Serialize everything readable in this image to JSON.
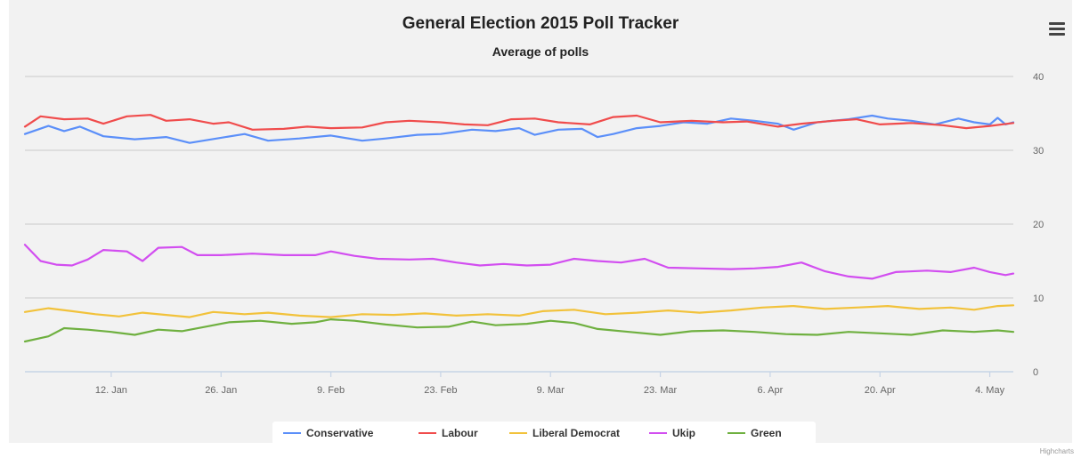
{
  "chart_data": {
    "type": "line",
    "title": "General Election 2015 Poll Tracker",
    "subtitle": "Average of polls",
    "xlabel": "",
    "ylabel": "",
    "x_range": [
      "2015-01-01",
      "2015-05-07"
    ],
    "ylim": [
      0,
      40
    ],
    "yticks": [
      "0",
      "10",
      "20",
      "30",
      "40"
    ],
    "xticks": [
      {
        "label": "12. Jan",
        "date": "2015-01-12"
      },
      {
        "label": "26. Jan",
        "date": "2015-01-26"
      },
      {
        "label": "9. Feb",
        "date": "2015-02-09"
      },
      {
        "label": "23. Feb",
        "date": "2015-02-23"
      },
      {
        "label": "9. Mar",
        "date": "2015-03-09"
      },
      {
        "label": "23. Mar",
        "date": "2015-03-23"
      },
      {
        "label": "6. Apr",
        "date": "2015-04-06"
      },
      {
        "label": "20. Apr",
        "date": "2015-04-20"
      },
      {
        "label": "4. May",
        "date": "2015-05-04"
      }
    ],
    "grid": true,
    "legend_position": "bottom",
    "y_axis_side": "right",
    "series": [
      {
        "name": "Conservative",
        "color": "#5b8ff9",
        "points": [
          [
            "2015-01-01",
            32.2
          ],
          [
            "2015-01-04",
            33.3
          ],
          [
            "2015-01-06",
            32.6
          ],
          [
            "2015-01-08",
            33.2
          ],
          [
            "2015-01-11",
            31.9
          ],
          [
            "2015-01-15",
            31.5
          ],
          [
            "2015-01-19",
            31.8
          ],
          [
            "2015-01-22",
            31.0
          ],
          [
            "2015-01-26",
            31.7
          ],
          [
            "2015-01-29",
            32.2
          ],
          [
            "2015-02-01",
            31.3
          ],
          [
            "2015-02-05",
            31.6
          ],
          [
            "2015-02-09",
            32.0
          ],
          [
            "2015-02-13",
            31.3
          ],
          [
            "2015-02-16",
            31.6
          ],
          [
            "2015-02-20",
            32.1
          ],
          [
            "2015-02-23",
            32.2
          ],
          [
            "2015-02-27",
            32.8
          ],
          [
            "2015-03-02",
            32.6
          ],
          [
            "2015-03-05",
            33.0
          ],
          [
            "2015-03-07",
            32.1
          ],
          [
            "2015-03-10",
            32.8
          ],
          [
            "2015-03-13",
            32.9
          ],
          [
            "2015-03-15",
            31.8
          ],
          [
            "2015-03-17",
            32.2
          ],
          [
            "2015-03-20",
            33.0
          ],
          [
            "2015-03-23",
            33.3
          ],
          [
            "2015-03-26",
            33.8
          ],
          [
            "2015-03-29",
            33.6
          ],
          [
            "2015-04-01",
            34.3
          ],
          [
            "2015-04-04",
            34.0
          ],
          [
            "2015-04-07",
            33.6
          ],
          [
            "2015-04-09",
            32.8
          ],
          [
            "2015-04-12",
            33.8
          ],
          [
            "2015-04-16",
            34.2
          ],
          [
            "2015-04-19",
            34.7
          ],
          [
            "2015-04-21",
            34.3
          ],
          [
            "2015-04-24",
            34.0
          ],
          [
            "2015-04-27",
            33.5
          ],
          [
            "2015-04-30",
            34.3
          ],
          [
            "2015-05-02",
            33.8
          ],
          [
            "2015-05-04",
            33.5
          ],
          [
            "2015-05-05",
            34.4
          ],
          [
            "2015-05-06",
            33.5
          ],
          [
            "2015-05-07",
            33.8
          ]
        ]
      },
      {
        "name": "Labour",
        "color": "#f04c4c",
        "points": [
          [
            "2015-01-01",
            33.2
          ],
          [
            "2015-01-03",
            34.6
          ],
          [
            "2015-01-06",
            34.2
          ],
          [
            "2015-01-09",
            34.3
          ],
          [
            "2015-01-11",
            33.6
          ],
          [
            "2015-01-14",
            34.6
          ],
          [
            "2015-01-17",
            34.8
          ],
          [
            "2015-01-19",
            34.0
          ],
          [
            "2015-01-22",
            34.2
          ],
          [
            "2015-01-25",
            33.6
          ],
          [
            "2015-01-27",
            33.8
          ],
          [
            "2015-01-30",
            32.8
          ],
          [
            "2015-02-03",
            32.9
          ],
          [
            "2015-02-06",
            33.2
          ],
          [
            "2015-02-09",
            33.0
          ],
          [
            "2015-02-13",
            33.1
          ],
          [
            "2015-02-16",
            33.8
          ],
          [
            "2015-02-19",
            34.0
          ],
          [
            "2015-02-23",
            33.8
          ],
          [
            "2015-02-26",
            33.5
          ],
          [
            "2015-03-01",
            33.4
          ],
          [
            "2015-03-04",
            34.2
          ],
          [
            "2015-03-07",
            34.3
          ],
          [
            "2015-03-10",
            33.8
          ],
          [
            "2015-03-14",
            33.5
          ],
          [
            "2015-03-17",
            34.5
          ],
          [
            "2015-03-20",
            34.7
          ],
          [
            "2015-03-23",
            33.8
          ],
          [
            "2015-03-27",
            34.0
          ],
          [
            "2015-03-31",
            33.8
          ],
          [
            "2015-04-03",
            33.9
          ],
          [
            "2015-04-07",
            33.2
          ],
          [
            "2015-04-10",
            33.6
          ],
          [
            "2015-04-14",
            34.0
          ],
          [
            "2015-04-17",
            34.2
          ],
          [
            "2015-04-20",
            33.5
          ],
          [
            "2015-04-24",
            33.7
          ],
          [
            "2015-04-28",
            33.4
          ],
          [
            "2015-05-01",
            33.0
          ],
          [
            "2015-05-04",
            33.3
          ],
          [
            "2015-05-07",
            33.7
          ]
        ]
      },
      {
        "name": "Liberal Democrat",
        "color": "#f2c23b",
        "points": [
          [
            "2015-01-01",
            8.1
          ],
          [
            "2015-01-04",
            8.6
          ],
          [
            "2015-01-07",
            8.2
          ],
          [
            "2015-01-10",
            7.8
          ],
          [
            "2015-01-13",
            7.5
          ],
          [
            "2015-01-16",
            8.0
          ],
          [
            "2015-01-19",
            7.7
          ],
          [
            "2015-01-22",
            7.4
          ],
          [
            "2015-01-25",
            8.1
          ],
          [
            "2015-01-29",
            7.8
          ],
          [
            "2015-02-01",
            8.0
          ],
          [
            "2015-02-05",
            7.6
          ],
          [
            "2015-02-09",
            7.4
          ],
          [
            "2015-02-13",
            7.8
          ],
          [
            "2015-02-17",
            7.7
          ],
          [
            "2015-02-21",
            7.9
          ],
          [
            "2015-02-25",
            7.6
          ],
          [
            "2015-03-01",
            7.8
          ],
          [
            "2015-03-05",
            7.6
          ],
          [
            "2015-03-08",
            8.2
          ],
          [
            "2015-03-12",
            8.4
          ],
          [
            "2015-03-16",
            7.8
          ],
          [
            "2015-03-20",
            8.0
          ],
          [
            "2015-03-24",
            8.3
          ],
          [
            "2015-03-28",
            8.0
          ],
          [
            "2015-04-01",
            8.3
          ],
          [
            "2015-04-05",
            8.7
          ],
          [
            "2015-04-09",
            8.9
          ],
          [
            "2015-04-13",
            8.5
          ],
          [
            "2015-04-17",
            8.7
          ],
          [
            "2015-04-21",
            8.9
          ],
          [
            "2015-04-25",
            8.5
          ],
          [
            "2015-04-29",
            8.7
          ],
          [
            "2015-05-02",
            8.4
          ],
          [
            "2015-05-05",
            8.9
          ],
          [
            "2015-05-07",
            9.0
          ]
        ]
      },
      {
        "name": "Ukip",
        "color": "#d24ef0",
        "points": [
          [
            "2015-01-01",
            17.2
          ],
          [
            "2015-01-03",
            15.0
          ],
          [
            "2015-01-05",
            14.5
          ],
          [
            "2015-01-07",
            14.4
          ],
          [
            "2015-01-09",
            15.2
          ],
          [
            "2015-01-11",
            16.5
          ],
          [
            "2015-01-14",
            16.3
          ],
          [
            "2015-01-16",
            15.0
          ],
          [
            "2015-01-18",
            16.8
          ],
          [
            "2015-01-21",
            16.9
          ],
          [
            "2015-01-23",
            15.8
          ],
          [
            "2015-01-26",
            15.8
          ],
          [
            "2015-01-30",
            16.0
          ],
          [
            "2015-02-03",
            15.8
          ],
          [
            "2015-02-07",
            15.8
          ],
          [
            "2015-02-09",
            16.3
          ],
          [
            "2015-02-12",
            15.7
          ],
          [
            "2015-02-15",
            15.3
          ],
          [
            "2015-02-19",
            15.2
          ],
          [
            "2015-02-22",
            15.3
          ],
          [
            "2015-02-25",
            14.8
          ],
          [
            "2015-02-28",
            14.4
          ],
          [
            "2015-03-03",
            14.6
          ],
          [
            "2015-03-06",
            14.4
          ],
          [
            "2015-03-09",
            14.5
          ],
          [
            "2015-03-12",
            15.3
          ],
          [
            "2015-03-15",
            15.0
          ],
          [
            "2015-03-18",
            14.8
          ],
          [
            "2015-03-21",
            15.3
          ],
          [
            "2015-03-24",
            14.1
          ],
          [
            "2015-03-28",
            14.0
          ],
          [
            "2015-04-01",
            13.9
          ],
          [
            "2015-04-04",
            14.0
          ],
          [
            "2015-04-07",
            14.2
          ],
          [
            "2015-04-10",
            14.8
          ],
          [
            "2015-04-13",
            13.6
          ],
          [
            "2015-04-16",
            12.9
          ],
          [
            "2015-04-19",
            12.6
          ],
          [
            "2015-04-22",
            13.5
          ],
          [
            "2015-04-26",
            13.7
          ],
          [
            "2015-04-29",
            13.5
          ],
          [
            "2015-05-02",
            14.1
          ],
          [
            "2015-05-04",
            13.5
          ],
          [
            "2015-05-06",
            13.1
          ],
          [
            "2015-05-07",
            13.3
          ]
        ]
      },
      {
        "name": "Green",
        "color": "#6fb040",
        "points": [
          [
            "2015-01-01",
            4.1
          ],
          [
            "2015-01-04",
            4.8
          ],
          [
            "2015-01-06",
            5.9
          ],
          [
            "2015-01-09",
            5.7
          ],
          [
            "2015-01-12",
            5.4
          ],
          [
            "2015-01-15",
            5.0
          ],
          [
            "2015-01-18",
            5.7
          ],
          [
            "2015-01-21",
            5.5
          ],
          [
            "2015-01-24",
            6.1
          ],
          [
            "2015-01-27",
            6.7
          ],
          [
            "2015-01-31",
            6.9
          ],
          [
            "2015-02-04",
            6.5
          ],
          [
            "2015-02-07",
            6.7
          ],
          [
            "2015-02-09",
            7.1
          ],
          [
            "2015-02-12",
            6.9
          ],
          [
            "2015-02-16",
            6.4
          ],
          [
            "2015-02-20",
            6.0
          ],
          [
            "2015-02-24",
            6.1
          ],
          [
            "2015-02-27",
            6.8
          ],
          [
            "2015-03-02",
            6.3
          ],
          [
            "2015-03-06",
            6.5
          ],
          [
            "2015-03-09",
            6.9
          ],
          [
            "2015-03-12",
            6.6
          ],
          [
            "2015-03-15",
            5.8
          ],
          [
            "2015-03-19",
            5.4
          ],
          [
            "2015-03-23",
            5.0
          ],
          [
            "2015-03-27",
            5.5
          ],
          [
            "2015-03-31",
            5.6
          ],
          [
            "2015-04-04",
            5.4
          ],
          [
            "2015-04-08",
            5.1
          ],
          [
            "2015-04-12",
            5.0
          ],
          [
            "2015-04-16",
            5.4
          ],
          [
            "2015-04-20",
            5.2
          ],
          [
            "2015-04-24",
            5.0
          ],
          [
            "2015-04-28",
            5.6
          ],
          [
            "2015-05-02",
            5.4
          ],
          [
            "2015-05-05",
            5.6
          ],
          [
            "2015-05-07",
            5.4
          ]
        ]
      }
    ]
  },
  "legend": {
    "items": [
      {
        "label": "Conservative",
        "color": "#5b8ff9"
      },
      {
        "label": "Labour",
        "color": "#f04c4c"
      },
      {
        "label": "Liberal Democrat",
        "color": "#f2c23b"
      },
      {
        "label": "Ukip",
        "color": "#d24ef0"
      },
      {
        "label": "Green",
        "color": "#6fb040"
      }
    ]
  },
  "menu_icon": "hamburger-menu-icon",
  "credit": "Highcharts"
}
